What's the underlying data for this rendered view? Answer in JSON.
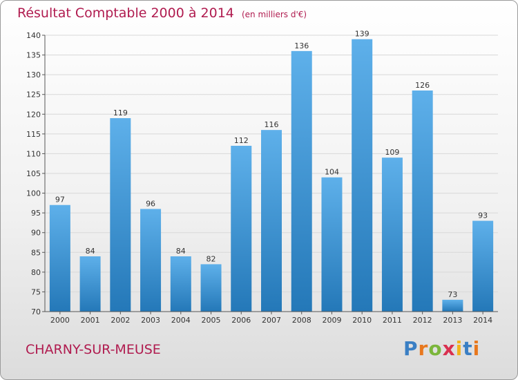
{
  "header": {
    "title": "Résultat Comptable 2000 à 2014",
    "subtitle": "(en milliers d'€)"
  },
  "footer": {
    "commune": "CHARNY-SUR-MEUSE",
    "logo_text": "Proxiti"
  },
  "colors": {
    "bar_light": "#5eb0ea",
    "bar_dark": "#2478b8",
    "title": "#b01b4f",
    "grid": "#d8d8d8"
  },
  "chart_data": {
    "type": "bar",
    "title": "Résultat Comptable 2000 à 2014",
    "subtitle": "(en milliers d'€)",
    "categories": [
      "2000",
      "2001",
      "2002",
      "2003",
      "2004",
      "2005",
      "2006",
      "2007",
      "2008",
      "2009",
      "2010",
      "2011",
      "2012",
      "2013",
      "2014"
    ],
    "values": [
      97,
      84,
      119,
      96,
      84,
      82,
      112,
      116,
      136,
      104,
      139,
      109,
      126,
      73,
      93
    ],
    "ylim": [
      70,
      140
    ],
    "yticks": [
      70,
      75,
      80,
      85,
      90,
      95,
      100,
      105,
      110,
      115,
      120,
      125,
      130,
      135,
      140
    ],
    "grid": true,
    "data_labels": true,
    "legend": "none"
  }
}
